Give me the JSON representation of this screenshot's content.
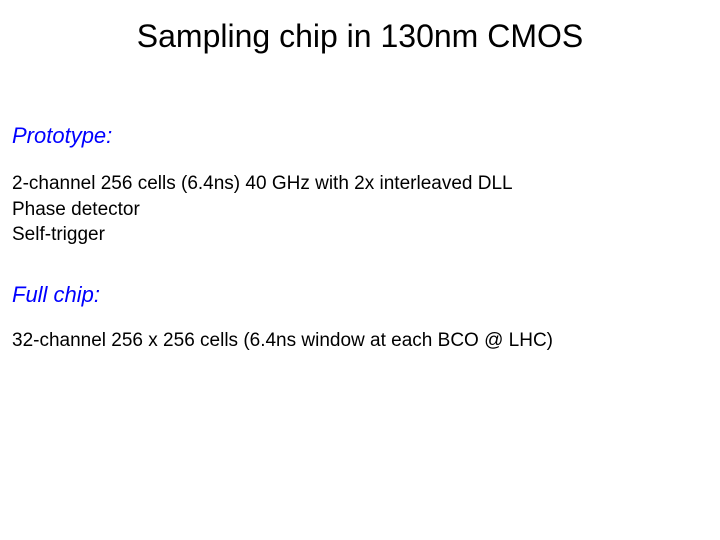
{
  "title": "Sampling chip in 130nm CMOS",
  "sections": {
    "prototype": {
      "heading": "Prototype:",
      "lines": [
        "2-channel  256 cells (6.4ns)   40 GHz  with 2x interleaved DLL",
        "Phase detector",
        "Self-trigger"
      ]
    },
    "fullchip": {
      "heading": "Full chip:",
      "lines": [
        "32-channel 256 x 256 cells (6.4ns window at each BCO @ LHC)"
      ]
    }
  },
  "colors": {
    "heading_color": "#0000ff",
    "text_color": "#000000",
    "background": "#ffffff"
  },
  "typography": {
    "title_fontsize": 32,
    "heading_fontsize": 22,
    "body_fontsize": 19
  }
}
